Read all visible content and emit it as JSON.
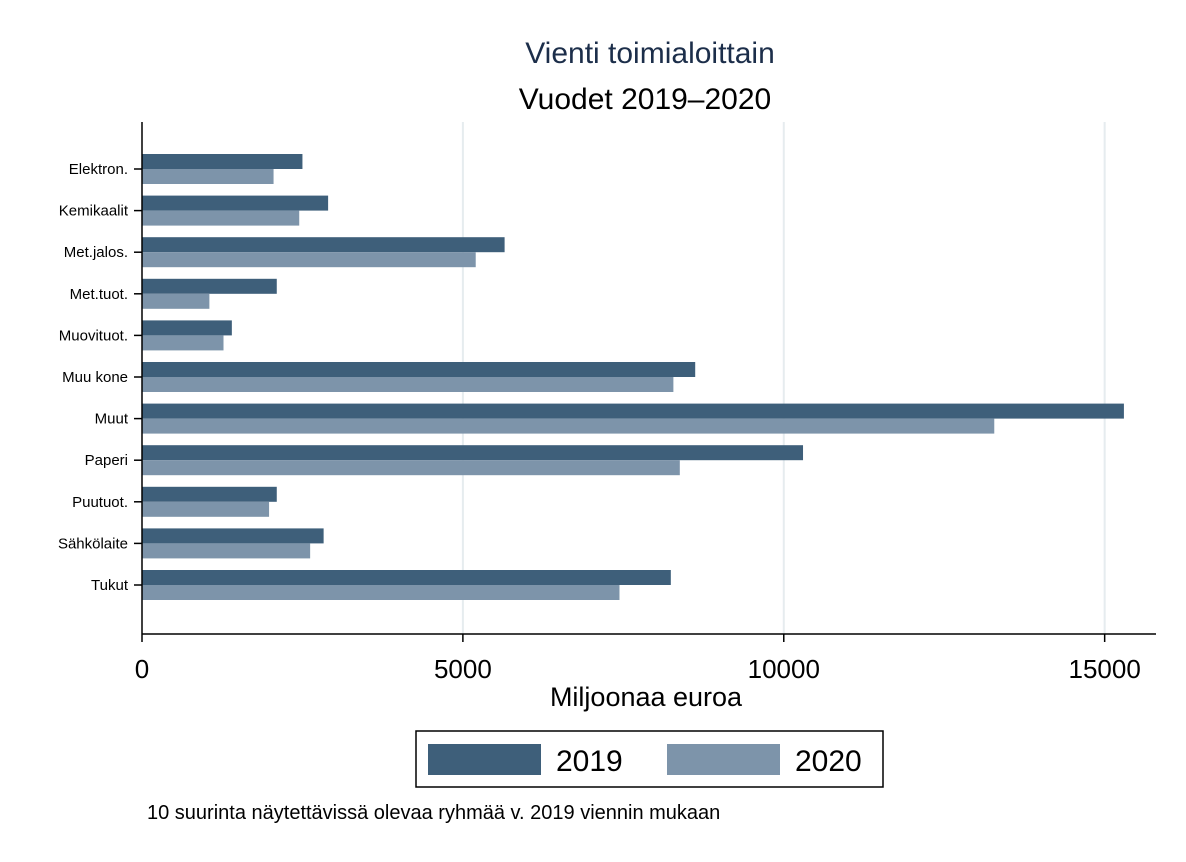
{
  "chart_data": {
    "type": "bar",
    "orientation": "horizontal",
    "title": "Vienti toimialoittain",
    "subtitle": "Vuodet 2019–2020",
    "xlabel": "Miljoonaa euroa",
    "ylabel": "",
    "categories": [
      "Elektron.",
      "Kemikaalit",
      "Met.jalos.",
      "Met.tuot.",
      "Muovituot.",
      "Muu kone",
      "Muut",
      "Paperi",
      "Puutuot.",
      "Sähkölaite",
      "Tukut"
    ],
    "series": [
      {
        "name": "2019",
        "color": "#3e5f7a",
        "values": [
          2500,
          2900,
          5650,
          2100,
          1400,
          8620,
          15300,
          10300,
          2100,
          2830,
          8240
        ]
      },
      {
        "name": "2020",
        "color": "#7d94aa",
        "values": [
          2050,
          2450,
          5200,
          1050,
          1270,
          8280,
          13280,
          8380,
          1980,
          2620,
          7440
        ]
      }
    ],
    "xlim": [
      0,
      15800
    ],
    "xticks": [
      "0",
      "5000",
      "10000",
      "15000"
    ],
    "xtick_values": [
      0,
      5000,
      10000,
      15000
    ],
    "grid": true,
    "legend_position": "bottom-center",
    "note": "10 suurinta näytettävissä olevaa ryhmää v. 2019 viennin mukaan"
  }
}
